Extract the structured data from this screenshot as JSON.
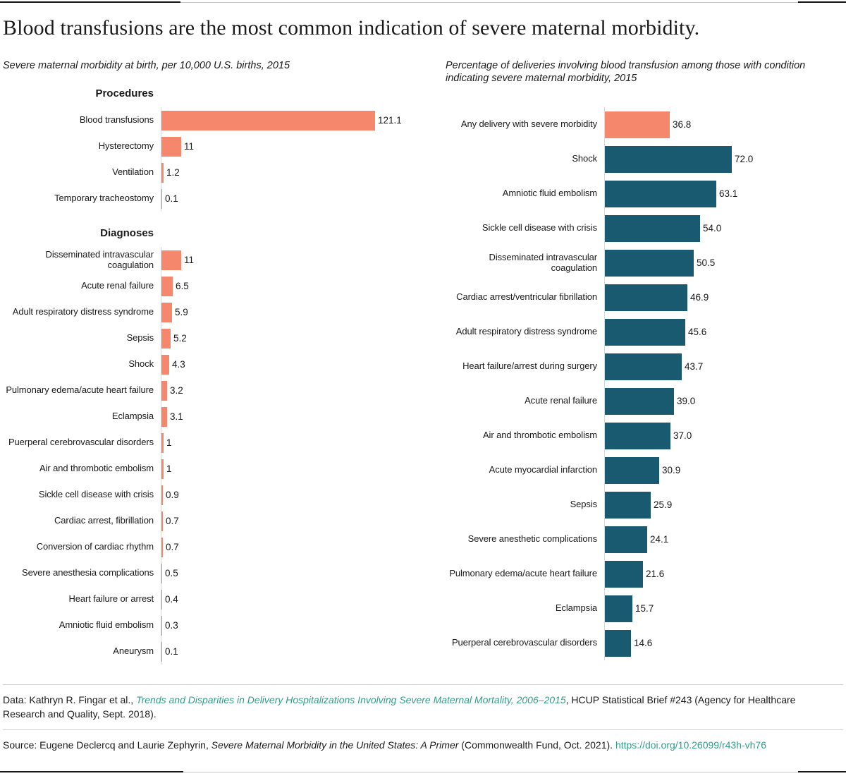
{
  "title": "Blood transfusions are the most common indication of severe maternal morbidity.",
  "colors": {
    "orange": "#f4876c",
    "dark_teal": "#195a70",
    "link_teal": "#349c8c"
  },
  "chart_data": [
    {
      "type": "bar",
      "orientation": "horizontal",
      "subtitle": "Severe maternal morbidity at birth, per 10,000 U.S. births, 2015",
      "bar_color": "#f4876c",
      "xlim": [
        0,
        130
      ],
      "grid": false,
      "sections": [
        {
          "header": "Procedures",
          "bars": [
            {
              "label": "Blood transfusions",
              "value": 121.1,
              "display": "121.1"
            },
            {
              "label": "Hysterectomy",
              "value": 11,
              "display": "11"
            },
            {
              "label": "Ventilation",
              "value": 1.2,
              "display": "1.2"
            },
            {
              "label": "Temporary tracheostomy",
              "value": 0.1,
              "display": "0.1"
            }
          ]
        },
        {
          "header": "Diagnoses",
          "bars": [
            {
              "label": "Disseminated intravascular coagulation",
              "value": 11,
              "display": "11"
            },
            {
              "label": "Acute renal failure",
              "value": 6.5,
              "display": "6.5"
            },
            {
              "label": "Adult respiratory distress syndrome",
              "value": 5.9,
              "display": "5.9"
            },
            {
              "label": "Sepsis",
              "value": 5.2,
              "display": "5.2"
            },
            {
              "label": "Shock",
              "value": 4.3,
              "display": "4.3"
            },
            {
              "label": "Pulmonary edema/acute heart failure",
              "value": 3.2,
              "display": "3.2"
            },
            {
              "label": "Eclampsia",
              "value": 3.1,
              "display": "3.1"
            },
            {
              "label": "Puerperal cerebrovascular disorders",
              "value": 1,
              "display": "1"
            },
            {
              "label": "Air and thrombotic embolism",
              "value": 1,
              "display": "1"
            },
            {
              "label": "Sickle cell disease with crisis",
              "value": 0.9,
              "display": "0.9"
            },
            {
              "label": "Cardiac arrest, fibrillation",
              "value": 0.7,
              "display": "0.7"
            },
            {
              "label": "Conversion of cardiac rhythm",
              "value": 0.7,
              "display": "0.7"
            },
            {
              "label": "Severe anesthesia complications",
              "value": 0.5,
              "display": "0.5"
            },
            {
              "label": "Heart failure or arrest",
              "value": 0.4,
              "display": "0.4"
            },
            {
              "label": "Amniotic fluid embolism",
              "value": 0.3,
              "display": "0.3"
            },
            {
              "label": "Aneurysm",
              "value": 0.1,
              "display": "0.1"
            }
          ]
        }
      ]
    },
    {
      "type": "bar",
      "orientation": "horizontal",
      "subtitle": "Percentage of deliveries involving blood transfusion among those with condition indicating severe maternal morbidity, 2015",
      "bar_color": "#195a70",
      "highlight_color": "#f4876c",
      "xlim": [
        0,
        80
      ],
      "grid": false,
      "bars": [
        {
          "label": "Any delivery with severe morbidity",
          "value": 36.8,
          "display": "36.8",
          "highlight": true
        },
        {
          "label": "Shock",
          "value": 72.0,
          "display": "72.0"
        },
        {
          "label": "Amniotic fluid embolism",
          "value": 63.1,
          "display": "63.1"
        },
        {
          "label": "Sickle cell disease with crisis",
          "value": 54.0,
          "display": "54.0"
        },
        {
          "label": "Disseminated intravascular coagulation",
          "value": 50.5,
          "display": "50.5"
        },
        {
          "label": "Cardiac arrest/ventricular fibrillation",
          "value": 46.9,
          "display": "46.9"
        },
        {
          "label": "Adult respiratory distress syndrome",
          "value": 45.6,
          "display": "45.6"
        },
        {
          "label": "Heart failure/arrest during surgery",
          "value": 43.7,
          "display": "43.7"
        },
        {
          "label": "Acute renal failure",
          "value": 39.0,
          "display": "39.0"
        },
        {
          "label": "Air and thrombotic embolism",
          "value": 37.0,
          "display": "37.0"
        },
        {
          "label": "Acute myocardial infarction",
          "value": 30.9,
          "display": "30.9"
        },
        {
          "label": "Sepsis",
          "value": 25.9,
          "display": "25.9"
        },
        {
          "label": "Severe anesthetic complications",
          "value": 24.1,
          "display": "24.1"
        },
        {
          "label": "Pulmonary edema/acute heart failure",
          "value": 21.6,
          "display": "21.6"
        },
        {
          "label": "Eclampsia",
          "value": 15.7,
          "display": "15.7"
        },
        {
          "label": "Puerperal cerebrovascular disorders",
          "value": 14.6,
          "display": "14.6"
        }
      ]
    }
  ],
  "footer": {
    "data_prefix": "Data: Kathryn R. Fingar et al., ",
    "data_link": "Trends and Disparities in Delivery Hospitalizations Involving Severe Maternal Mortality, 2006–2015",
    "data_suffix": ", HCUP Statistical Brief #243 (Agency for Healthcare Research and Quality, Sept. 2018).",
    "source_prefix": "Source: Eugene Declercq and Laurie Zephyrin, ",
    "source_title": "Severe Maternal Morbidity in the United States: A Primer",
    "source_mid": " (Commonwealth Fund, Oct. 2021). ",
    "source_link": "https://doi.org/10.26099/r43h-vh76"
  }
}
